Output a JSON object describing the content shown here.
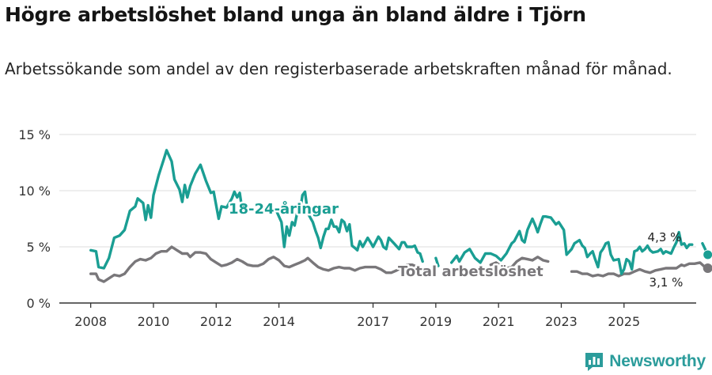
{
  "title": "Högre arbetslöshet bland unga än bland äldre i Tjörn",
  "subtitle": "Arbetssökande som andel av den registerbaserade arbetskraften månad för månad.",
  "brand": {
    "name": "Newsworthy",
    "logo_icon": "bar-chart-speech-bubble-icon"
  },
  "colors": {
    "young": "#1a9e93",
    "total": "#79777a",
    "grid": "#dddddd",
    "axis": "#333333",
    "brand": "#2b9c9b"
  },
  "chart_data": {
    "type": "line",
    "title": "Högre arbetslöshet bland unga än bland äldre i Tjörn",
    "ylabel": "",
    "xlabel": "",
    "ylim": [
      0,
      15
    ],
    "y_ticks": [
      0,
      5,
      10,
      15
    ],
    "y_tick_labels": [
      "0 %",
      "5 %",
      "10 %",
      "15 %"
    ],
    "x_ticks": [
      2008,
      2010,
      2012,
      2014,
      2017,
      2019,
      2021,
      2023,
      2025
    ],
    "x_tick_labels": [
      "2008",
      "2010",
      "2012",
      "2014",
      "2017",
      "2019",
      "2021",
      "2023",
      "2025"
    ],
    "xlim": [
      2007,
      2027.3
    ],
    "grid": "horizontal",
    "series": [
      {
        "name": "18-24-åringar",
        "label": "18-24-åringar",
        "end_label": "4,3 %",
        "end_value": 4.3,
        "points": [
          [
            2008.0,
            4.7
          ],
          [
            2008.17,
            4.6
          ],
          [
            2008.25,
            3.2
          ],
          [
            2008.42,
            3.1
          ],
          [
            2008.58,
            4.0
          ],
          [
            2008.75,
            5.8
          ],
          [
            2008.92,
            6.0
          ],
          [
            2009.08,
            6.5
          ],
          [
            2009.25,
            8.2
          ],
          [
            2009.42,
            8.6
          ],
          [
            2009.5,
            9.3
          ],
          [
            2009.67,
            8.9
          ],
          [
            2009.75,
            7.4
          ],
          [
            2009.83,
            8.7
          ],
          [
            2009.92,
            7.6
          ],
          [
            2010.0,
            9.6
          ],
          [
            2010.17,
            11.4
          ],
          [
            2010.33,
            12.8
          ],
          [
            2010.42,
            13.6
          ],
          [
            2010.58,
            12.6
          ],
          [
            2010.67,
            11.0
          ],
          [
            2010.83,
            10.1
          ],
          [
            2010.92,
            9.0
          ],
          [
            2011.0,
            10.5
          ],
          [
            2011.08,
            9.4
          ],
          [
            2011.17,
            10.4
          ],
          [
            2011.33,
            11.5
          ],
          [
            2011.5,
            12.3
          ],
          [
            2011.67,
            10.9
          ],
          [
            2011.83,
            9.8
          ],
          [
            2011.92,
            9.9
          ],
          [
            2012.08,
            7.5
          ],
          [
            2012.17,
            8.6
          ],
          [
            2012.33,
            8.5
          ],
          [
            2012.5,
            9.3
          ],
          [
            2012.58,
            9.9
          ],
          [
            2012.67,
            9.4
          ],
          [
            2012.75,
            9.8
          ],
          [
            2012.83,
            8.3
          ],
          [
            2012.92,
            8.9
          ],
          [
            2013.0,
            8.3
          ],
          null,
          [
            2013.92,
            8.2
          ],
          [
            2014.08,
            7.2
          ],
          [
            2014.17,
            5.0
          ],
          [
            2014.25,
            6.8
          ],
          [
            2014.33,
            6.0
          ],
          [
            2014.42,
            7.2
          ],
          [
            2014.5,
            6.9
          ],
          [
            2014.58,
            8.0
          ],
          [
            2014.67,
            8.1
          ],
          [
            2014.75,
            9.6
          ],
          [
            2014.83,
            9.9
          ],
          [
            2014.92,
            8.0
          ],
          [
            2015.0,
            7.6
          ],
          [
            2015.08,
            7.2
          ],
          [
            2015.17,
            6.4
          ],
          [
            2015.25,
            5.8
          ],
          [
            2015.33,
            4.9
          ],
          [
            2015.42,
            5.9
          ],
          [
            2015.5,
            6.6
          ],
          [
            2015.58,
            6.6
          ],
          [
            2015.67,
            7.4
          ],
          [
            2015.75,
            6.8
          ],
          [
            2015.83,
            6.8
          ],
          [
            2015.92,
            6.3
          ],
          [
            2016.0,
            7.4
          ],
          [
            2016.08,
            7.2
          ],
          [
            2016.17,
            6.4
          ],
          [
            2016.25,
            7.0
          ],
          [
            2016.33,
            5.1
          ],
          [
            2016.42,
            4.9
          ],
          [
            2016.5,
            4.7
          ],
          [
            2016.58,
            5.5
          ],
          [
            2016.67,
            5.0
          ],
          [
            2016.83,
            5.8
          ],
          [
            2016.92,
            5.4
          ],
          [
            2017.0,
            5.0
          ],
          [
            2017.17,
            5.9
          ],
          [
            2017.25,
            5.6
          ],
          [
            2017.33,
            5.0
          ],
          [
            2017.42,
            4.8
          ],
          [
            2017.5,
            5.8
          ],
          [
            2017.67,
            5.3
          ],
          [
            2017.83,
            4.8
          ],
          [
            2017.92,
            5.4
          ],
          [
            2018.0,
            5.4
          ],
          [
            2018.08,
            5.0
          ],
          [
            2018.25,
            5.0
          ],
          [
            2018.33,
            5.1
          ],
          [
            2018.42,
            4.5
          ],
          [
            2018.5,
            4.4
          ],
          [
            2018.58,
            3.7
          ],
          null,
          [
            2019.0,
            4.0
          ],
          [
            2019.08,
            3.3
          ],
          null,
          [
            2019.5,
            3.6
          ],
          [
            2019.67,
            4.2
          ],
          [
            2019.75,
            3.7
          ],
          [
            2019.92,
            4.5
          ],
          [
            2020.08,
            4.8
          ],
          [
            2020.25,
            4.0
          ],
          [
            2020.42,
            3.6
          ],
          [
            2020.58,
            4.4
          ],
          [
            2020.75,
            4.4
          ],
          [
            2020.92,
            4.2
          ],
          [
            2021.08,
            3.8
          ],
          [
            2021.25,
            4.4
          ],
          [
            2021.42,
            5.3
          ],
          [
            2021.5,
            5.5
          ],
          [
            2021.67,
            6.4
          ],
          [
            2021.75,
            5.6
          ],
          [
            2021.83,
            5.4
          ],
          [
            2021.92,
            6.5
          ],
          [
            2022.0,
            7.0
          ],
          [
            2022.08,
            7.5
          ],
          [
            2022.17,
            6.9
          ],
          [
            2022.25,
            6.3
          ],
          [
            2022.33,
            7.0
          ],
          [
            2022.42,
            7.7
          ],
          [
            2022.5,
            7.7
          ],
          [
            2022.67,
            7.6
          ],
          [
            2022.83,
            7.0
          ],
          [
            2022.92,
            7.2
          ],
          [
            2023.08,
            6.5
          ],
          [
            2023.17,
            4.3
          ],
          [
            2023.33,
            4.8
          ],
          [
            2023.42,
            5.3
          ],
          [
            2023.58,
            5.6
          ],
          [
            2023.67,
            5.1
          ],
          [
            2023.75,
            4.9
          ],
          [
            2023.83,
            4.1
          ],
          [
            2023.92,
            4.4
          ],
          [
            2024.0,
            4.6
          ],
          [
            2024.08,
            3.9
          ],
          [
            2024.17,
            3.2
          ],
          [
            2024.25,
            4.5
          ],
          [
            2024.33,
            4.8
          ],
          [
            2024.42,
            5.3
          ],
          [
            2024.5,
            5.4
          ],
          [
            2024.58,
            4.3
          ],
          [
            2024.67,
            3.8
          ],
          [
            2024.83,
            3.9
          ],
          [
            2024.92,
            2.6
          ],
          [
            2025.0,
            3.0
          ],
          [
            2025.08,
            3.9
          ],
          [
            2025.17,
            3.7
          ],
          [
            2025.25,
            3.0
          ],
          [
            2025.33,
            4.6
          ],
          [
            2025.42,
            4.7
          ],
          [
            2025.5,
            5.0
          ],
          [
            2025.58,
            4.6
          ],
          [
            2025.67,
            4.8
          ],
          [
            2025.75,
            5.1
          ],
          [
            2025.83,
            4.7
          ],
          [
            2025.92,
            4.5
          ],
          [
            2026.08,
            4.6
          ],
          [
            2026.17,
            4.8
          ],
          [
            2026.25,
            4.4
          ],
          [
            2026.33,
            4.6
          ],
          [
            2026.5,
            4.4
          ],
          [
            2026.58,
            4.9
          ],
          [
            2026.67,
            5.4
          ],
          [
            2026.75,
            6.3
          ],
          [
            2026.83,
            5.2
          ],
          [
            2026.92,
            5.3
          ],
          [
            2027.0,
            4.9
          ],
          [
            2027.08,
            5.2
          ],
          [
            2027.17,
            5.2
          ],
          null,
          [
            2027.5,
            5.3
          ],
          [
            2027.67,
            4.3
          ]
        ]
      },
      {
        "name": "Total arbetslöshet",
        "label": "Total arbetslöshet",
        "end_label": "3,1 %",
        "end_value": 3.1,
        "points": [
          [
            2008.0,
            2.6
          ],
          [
            2008.17,
            2.6
          ],
          [
            2008.25,
            2.1
          ],
          [
            2008.42,
            1.9
          ],
          [
            2008.58,
            2.2
          ],
          [
            2008.75,
            2.5
          ],
          [
            2008.92,
            2.4
          ],
          [
            2009.08,
            2.6
          ],
          [
            2009.25,
            3.2
          ],
          [
            2009.42,
            3.7
          ],
          [
            2009.58,
            3.9
          ],
          [
            2009.75,
            3.8
          ],
          [
            2009.92,
            4.0
          ],
          [
            2010.08,
            4.4
          ],
          [
            2010.25,
            4.6
          ],
          [
            2010.42,
            4.6
          ],
          [
            2010.58,
            5.0
          ],
          [
            2010.75,
            4.7
          ],
          [
            2010.92,
            4.4
          ],
          [
            2011.08,
            4.4
          ],
          [
            2011.17,
            4.1
          ],
          [
            2011.33,
            4.5
          ],
          [
            2011.5,
            4.5
          ],
          [
            2011.67,
            4.4
          ],
          [
            2011.83,
            3.9
          ],
          [
            2012.0,
            3.6
          ],
          [
            2012.17,
            3.3
          ],
          [
            2012.33,
            3.4
          ],
          [
            2012.5,
            3.6
          ],
          [
            2012.67,
            3.9
          ],
          [
            2012.83,
            3.7
          ],
          [
            2013.0,
            3.4
          ],
          [
            2013.17,
            3.3
          ],
          [
            2013.33,
            3.3
          ],
          [
            2013.5,
            3.5
          ],
          [
            2013.67,
            3.9
          ],
          [
            2013.83,
            4.1
          ],
          [
            2014.0,
            3.8
          ],
          [
            2014.17,
            3.3
          ],
          [
            2014.33,
            3.2
          ],
          [
            2014.5,
            3.4
          ],
          [
            2014.67,
            3.6
          ],
          [
            2014.83,
            3.8
          ],
          [
            2014.92,
            4.0
          ],
          [
            2015.08,
            3.6
          ],
          [
            2015.25,
            3.2
          ],
          [
            2015.42,
            3.0
          ],
          [
            2015.58,
            2.9
          ],
          [
            2015.75,
            3.1
          ],
          [
            2015.92,
            3.2
          ],
          [
            2016.08,
            3.1
          ],
          [
            2016.25,
            3.1
          ],
          [
            2016.42,
            2.9
          ],
          [
            2016.58,
            3.1
          ],
          [
            2016.75,
            3.2
          ],
          [
            2016.92,
            3.2
          ],
          [
            2017.08,
            3.2
          ],
          [
            2017.25,
            3.0
          ],
          [
            2017.42,
            2.7
          ],
          [
            2017.58,
            2.7
          ],
          [
            2017.75,
            2.9
          ],
          [
            2017.92,
            3.2
          ],
          [
            2018.08,
            3.4
          ],
          [
            2018.25,
            3.4
          ],
          [
            2018.42,
            3.2
          ],
          [
            2018.58,
            2.9
          ],
          null,
          [
            2020.75,
            3.4
          ],
          [
            2020.92,
            3.6
          ],
          [
            2021.08,
            3.3
          ],
          [
            2021.25,
            3.1
          ],
          [
            2021.42,
            3.2
          ],
          [
            2021.58,
            3.7
          ],
          [
            2021.75,
            4.0
          ],
          [
            2021.92,
            3.9
          ],
          [
            2022.08,
            3.8
          ],
          [
            2022.25,
            4.1
          ],
          [
            2022.42,
            3.8
          ],
          [
            2022.58,
            3.7
          ],
          null,
          [
            2023.33,
            2.8
          ],
          [
            2023.5,
            2.8
          ],
          [
            2023.67,
            2.6
          ],
          [
            2023.83,
            2.6
          ],
          [
            2024.0,
            2.4
          ],
          [
            2024.17,
            2.5
          ],
          [
            2024.33,
            2.4
          ],
          [
            2024.5,
            2.6
          ],
          [
            2024.67,
            2.6
          ],
          [
            2024.83,
            2.4
          ],
          [
            2025.0,
            2.6
          ],
          [
            2025.17,
            2.6
          ],
          [
            2025.33,
            2.8
          ],
          [
            2025.5,
            3.0
          ],
          [
            2025.67,
            2.8
          ],
          [
            2025.83,
            2.7
          ],
          [
            2026.0,
            2.9
          ],
          [
            2026.17,
            3.0
          ],
          [
            2026.33,
            3.1
          ],
          [
            2026.5,
            3.1
          ],
          [
            2026.67,
            3.1
          ],
          [
            2026.83,
            3.4
          ],
          [
            2026.92,
            3.3
          ],
          [
            2027.08,
            3.5
          ],
          [
            2027.25,
            3.5
          ],
          [
            2027.42,
            3.6
          ],
          [
            2027.58,
            3.2
          ],
          [
            2027.67,
            3.1
          ]
        ]
      }
    ]
  }
}
